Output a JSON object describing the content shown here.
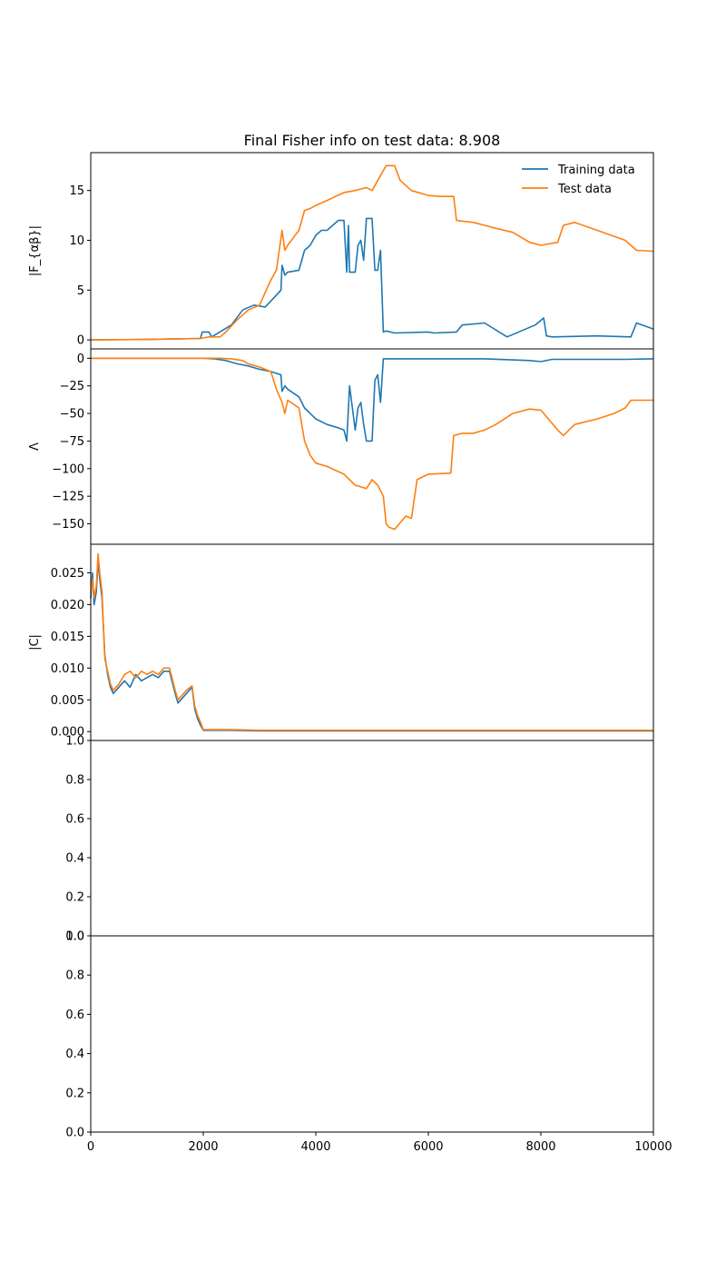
{
  "chart_data": {
    "type": "line",
    "title": "Final Fisher info on test data: 8.908",
    "xlabel": "",
    "xlim": [
      0,
      10000
    ],
    "xticks": [
      "0",
      "2000",
      "4000",
      "6000",
      "8000",
      "10000"
    ],
    "colors": {
      "training": "#1f77b4",
      "test": "#ff7f0e",
      "frame": "#000000"
    },
    "legend": {
      "position": "top-right",
      "entries": [
        "Training data",
        "Test data"
      ]
    },
    "panels": [
      {
        "ylabel": "|F_{αβ}|",
        "ylim": [
          -0.9,
          18.8
        ],
        "yticks": [
          0,
          5,
          10,
          15
        ],
        "ytick_labels": [
          "0",
          "5",
          "10",
          "15"
        ],
        "series": [
          {
            "name": "Training data",
            "color": "#1f77b4",
            "x": [
              0,
              1000,
              1950,
              1980,
              2100,
              2150,
              2500,
              2700,
              2900,
              3100,
              3300,
              3380,
              3400,
              3450,
              3500,
              3700,
              3800,
              3900,
              4000,
              4100,
              4200,
              4300,
              4400,
              4500,
              4550,
              4580,
              4600,
              4700,
              4750,
              4800,
              4850,
              4900,
              5000,
              5050,
              5100,
              5150,
              5200,
              5250,
              5400,
              6000,
              6100,
              6500,
              6600,
              7000,
              7400,
              7900,
              8050,
              8100,
              8200,
              9000,
              9600,
              9700,
              10000
            ],
            "y": [
              0,
              0.05,
              0.15,
              0.8,
              0.8,
              0.3,
              1.5,
              3.0,
              3.5,
              3.3,
              4.5,
              5.0,
              7.5,
              6.5,
              6.8,
              7.0,
              9.0,
              9.5,
              10.5,
              11.0,
              11.0,
              11.5,
              12.0,
              12.0,
              6.8,
              11.5,
              6.8,
              6.8,
              9.5,
              10.0,
              8.0,
              12.2,
              12.2,
              7.0,
              7.0,
              9.0,
              0.8,
              0.9,
              0.7,
              0.8,
              0.7,
              0.8,
              1.5,
              1.7,
              0.3,
              1.5,
              2.2,
              0.4,
              0.3,
              0.4,
              0.3,
              1.7,
              1.1
            ]
          },
          {
            "name": "Test data",
            "color": "#ff7f0e",
            "x": [
              0,
              1000,
              1950,
              2100,
              2300,
              2400,
              2600,
              2800,
              3000,
              3200,
              3300,
              3400,
              3450,
              3500,
              3700,
              3800,
              3900,
              4000,
              4200,
              4500,
              4700,
              4900,
              5000,
              5200,
              5250,
              5400,
              5500,
              5700,
              6000,
              6200,
              6450,
              6500,
              6800,
              7000,
              7200,
              7500,
              7800,
              8000,
              8300,
              8400,
              8600,
              9000,
              9500,
              9700,
              10000
            ],
            "y": [
              0,
              0.05,
              0.15,
              0.3,
              0.3,
              0.8,
              2.0,
              3.0,
              3.5,
              6.0,
              7.0,
              11.0,
              9.0,
              9.5,
              11.0,
              13.0,
              13.2,
              13.5,
              14.0,
              14.8,
              15.0,
              15.3,
              15.0,
              17.0,
              17.5,
              17.5,
              16.0,
              15.0,
              14.5,
              14.4,
              14.4,
              12.0,
              11.8,
              11.5,
              11.2,
              10.8,
              9.8,
              9.5,
              9.8,
              11.5,
              11.8,
              11.0,
              10.0,
              9.0,
              8.9
            ]
          }
        ]
      },
      {
        "ylabel": "Λ",
        "ylim": [
          -168.5,
          8.5
        ],
        "yticks": [
          0,
          -25,
          -50,
          -75,
          -100,
          -125,
          -150
        ],
        "ytick_labels": [
          "0",
          "−25",
          "−50",
          "−75",
          "−100",
          "−125",
          "−150"
        ],
        "series": [
          {
            "name": "Training data",
            "color": "#1f77b4",
            "x": [
              0,
              2000,
              2200,
              2400,
              2600,
              2800,
              3000,
              3200,
              3380,
              3400,
              3450,
              3500,
              3700,
              3800,
              3900,
              4000,
              4200,
              4400,
              4500,
              4550,
              4600,
              4700,
              4750,
              4800,
              4850,
              4900,
              5000,
              5050,
              5100,
              5150,
              5200,
              5250,
              6000,
              7000,
              7800,
              8000,
              8200,
              9000,
              9500,
              10000
            ],
            "y": [
              0,
              0,
              -0.5,
              -2,
              -5,
              -7,
              -10,
              -12,
              -15,
              -30,
              -25,
              -28,
              -35,
              -45,
              -50,
              -55,
              -60,
              -63,
              -65,
              -75,
              -25,
              -65,
              -45,
              -40,
              -60,
              -75,
              -75,
              -20,
              -15,
              -40,
              -0.5,
              -0.5,
              -0.5,
              -0.5,
              -2,
              -3,
              -1,
              -1,
              -1,
              -0.5
            ]
          },
          {
            "name": "Test data",
            "color": "#ff7f0e",
            "x": [
              0,
              2000,
              2300,
              2500,
              2700,
              2800,
              3000,
              3200,
              3300,
              3400,
              3450,
              3500,
              3700,
              3800,
              3900,
              4000,
              4200,
              4500,
              4700,
              4900,
              5000,
              5100,
              5200,
              5250,
              5300,
              5400,
              5600,
              5700,
              5800,
              6000,
              6400,
              6450,
              6600,
              6800,
              7000,
              7200,
              7500,
              7800,
              8000,
              8300,
              8400,
              8600,
              9000,
              9300,
              9500,
              9600,
              10000
            ],
            "y": [
              0,
              0,
              0,
              -0.5,
              -2,
              -5,
              -8,
              -12,
              -28,
              -40,
              -50,
              -38,
              -45,
              -75,
              -88,
              -95,
              -98,
              -105,
              -115,
              -118,
              -110,
              -115,
              -125,
              -150,
              -153,
              -155,
              -143,
              -145,
              -110,
              -105,
              -104,
              -70,
              -68,
              -68,
              -65,
              -60,
              -50,
              -46,
              -47,
              -65,
              -70,
              -60,
              -55,
              -50,
              -45,
              -38,
              -38
            ]
          }
        ]
      },
      {
        "ylabel": "|C|",
        "ylim": [
          -0.0014,
          0.0295
        ],
        "yticks": [
          0,
          0.005,
          0.01,
          0.015,
          0.02,
          0.025
        ],
        "ytick_labels": [
          "0.000",
          "0.005",
          "0.010",
          "0.015",
          "0.020",
          "0.025"
        ],
        "series": [
          {
            "name": "Training data",
            "color": "#1f77b4",
            "x": [
              0,
              30,
              60,
              100,
              130,
              160,
              200,
              250,
              300,
              350,
              400,
              450,
              500,
              600,
              700,
              800,
              900,
              1000,
              1100,
              1200,
              1300,
              1400,
              1500,
              1550,
              1600,
              1700,
              1800,
              1850,
              1900,
              1950,
              2000,
              2050,
              2500,
              3000,
              4000,
              5000,
              6000,
              7000,
              8000,
              9000,
              10000
            ],
            "y": [
              0.021,
              0.025,
              0.02,
              0.022,
              0.027,
              0.024,
              0.021,
              0.012,
              0.009,
              0.007,
              0.006,
              0.0065,
              0.007,
              0.008,
              0.007,
              0.009,
              0.008,
              0.0085,
              0.009,
              0.0085,
              0.0095,
              0.0095,
              0.006,
              0.0045,
              0.005,
              0.006,
              0.007,
              0.0035,
              0.002,
              0.001,
              0.0002,
              0.0002,
              0.0002,
              0.0001,
              0.0001,
              0.0001,
              0.0001,
              0.0001,
              0.0001,
              0.0001,
              0.0001
            ]
          },
          {
            "name": "Test data",
            "color": "#ff7f0e",
            "x": [
              0,
              30,
              60,
              100,
              130,
              160,
              200,
              250,
              300,
              350,
              400,
              450,
              500,
              600,
              700,
              800,
              900,
              1000,
              1100,
              1200,
              1300,
              1400,
              1500,
              1550,
              1600,
              1700,
              1800,
              1850,
              1900,
              1950,
              2000,
              2050,
              2500,
              3000,
              4000,
              5000,
              6000,
              7000,
              8000,
              9000,
              10000
            ],
            "y": [
              0.022,
              0.024,
              0.021,
              0.023,
              0.028,
              0.025,
              0.022,
              0.0115,
              0.0095,
              0.0075,
              0.0065,
              0.007,
              0.0075,
              0.009,
              0.0095,
              0.0085,
              0.0095,
              0.009,
              0.0095,
              0.009,
              0.01,
              0.01,
              0.0065,
              0.005,
              0.0055,
              0.0065,
              0.0072,
              0.004,
              0.0025,
              0.0015,
              0.0003,
              0.0003,
              0.0003,
              0.0002,
              0.0002,
              0.0002,
              0.0002,
              0.0002,
              0.0002,
              0.0002,
              0.0002
            ]
          }
        ]
      },
      {
        "ylabel": "",
        "ylim": [
          0,
          1
        ],
        "yticks": [
          0,
          0.2,
          0.4,
          0.6,
          0.8,
          1.0
        ],
        "ytick_labels": [
          "0.0",
          "0.2",
          "0.4",
          "0.6",
          "0.8",
          "1.0"
        ],
        "series": []
      },
      {
        "ylabel": "",
        "ylim": [
          0,
          1
        ],
        "yticks": [
          0,
          0.2,
          0.4,
          0.6,
          0.8,
          1.0
        ],
        "ytick_labels": [
          "0.0",
          "0.2",
          "0.4",
          "0.6",
          "0.8",
          "1.0"
        ],
        "series": []
      }
    ]
  }
}
